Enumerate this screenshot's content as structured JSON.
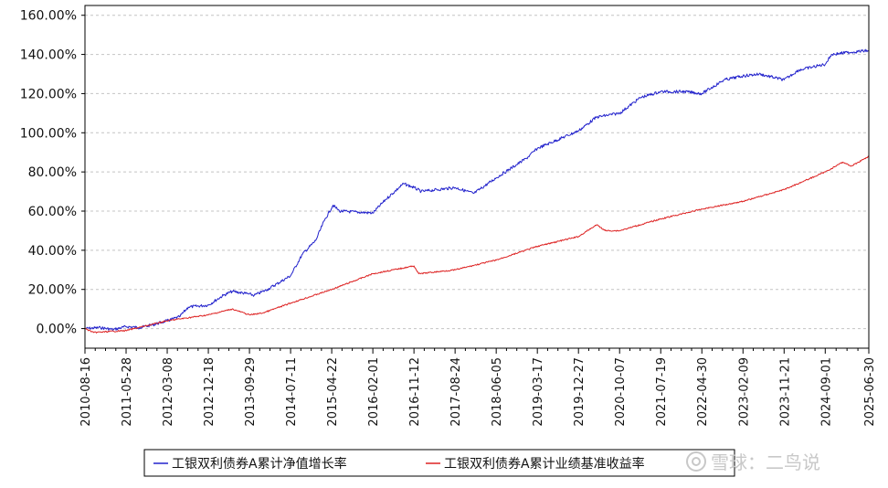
{
  "chart_data": {
    "type": "line",
    "title": "",
    "xlabel": "",
    "ylabel": "",
    "ylim": [
      -10,
      165
    ],
    "yticks": [
      0,
      20,
      40,
      60,
      80,
      100,
      120,
      140,
      160
    ],
    "ytick_labels": [
      "0.00%",
      "20.00%",
      "40.00%",
      "60.00%",
      "80.00%",
      "100.00%",
      "120.00%",
      "140.00%",
      "160.00%"
    ],
    "x_range": [
      "2010-08-16",
      "2025-06-30"
    ],
    "x_ticks": [
      "2010-08-16",
      "2011-05-28",
      "2012-03-08",
      "2012-12-18",
      "2013-09-29",
      "2014-07-11",
      "2015-04-22",
      "2016-02-01",
      "2016-11-12",
      "2017-08-24",
      "2018-06-05",
      "2019-03-17",
      "2019-12-27",
      "2020-10-07",
      "2021-07-19",
      "2022-04-30",
      "2023-02-09",
      "2023-11-21",
      "2024-09-01",
      "2025-06-30"
    ],
    "grid": "horizontal-dashed",
    "legend_position": "bottom",
    "series": [
      {
        "name": "工银双利债券A累计净值增长率",
        "color": "#2222cc",
        "points": [
          [
            "2010-08-16",
            0
          ],
          [
            "2010-12-01",
            0.5
          ],
          [
            "2011-03-01",
            -0.5
          ],
          [
            "2011-05-28",
            1
          ],
          [
            "2011-09-01",
            0.5
          ],
          [
            "2011-12-01",
            2
          ],
          [
            "2012-03-08",
            4
          ],
          [
            "2012-06-01",
            6
          ],
          [
            "2012-08-01",
            11
          ],
          [
            "2012-12-18",
            12
          ],
          [
            "2013-04-01",
            17
          ],
          [
            "2013-06-01",
            19
          ],
          [
            "2013-09-01",
            18
          ],
          [
            "2013-11-01",
            17
          ],
          [
            "2014-02-01",
            20
          ],
          [
            "2014-07-11",
            27
          ],
          [
            "2014-10-01",
            38
          ],
          [
            "2015-01-01",
            45
          ],
          [
            "2015-03-01",
            55
          ],
          [
            "2015-05-01",
            63
          ],
          [
            "2015-06-15",
            60
          ],
          [
            "2016-02-01",
            59
          ],
          [
            "2016-05-01",
            66
          ],
          [
            "2016-09-01",
            74
          ],
          [
            "2016-11-12",
            72
          ],
          [
            "2017-01-01",
            70
          ],
          [
            "2017-08-24",
            72
          ],
          [
            "2018-01-01",
            69
          ],
          [
            "2018-06-05",
            77
          ],
          [
            "2019-01-01",
            87
          ],
          [
            "2019-03-17",
            92
          ],
          [
            "2019-12-27",
            101
          ],
          [
            "2020-05-01",
            108
          ],
          [
            "2020-10-07",
            110
          ],
          [
            "2021-03-01",
            118
          ],
          [
            "2021-07-19",
            121
          ],
          [
            "2022-01-01",
            121
          ],
          [
            "2022-04-30",
            120
          ],
          [
            "2022-10-01",
            127
          ],
          [
            "2023-02-09",
            129
          ],
          [
            "2023-06-01",
            130
          ],
          [
            "2023-11-21",
            127
          ],
          [
            "2024-03-01",
            132
          ],
          [
            "2024-09-01",
            135
          ],
          [
            "2024-10-15",
            140
          ],
          [
            "2025-02-01",
            141
          ],
          [
            "2025-06-30",
            142
          ]
        ]
      },
      {
        "name": "工银双利债券A累计业绩基准收益率",
        "color": "#dd2222",
        "points": [
          [
            "2010-08-16",
            0
          ],
          [
            "2010-10-15",
            -2
          ],
          [
            "2011-05-28",
            -1
          ],
          [
            "2012-03-08",
            4
          ],
          [
            "2012-12-18",
            7
          ],
          [
            "2013-06-01",
            10
          ],
          [
            "2013-09-29",
            7
          ],
          [
            "2014-01-01",
            8
          ],
          [
            "2014-07-11",
            13
          ],
          [
            "2015-04-22",
            20
          ],
          [
            "2016-02-01",
            28
          ],
          [
            "2016-11-12",
            32
          ],
          [
            "2016-12-15",
            28
          ],
          [
            "2017-08-24",
            30
          ],
          [
            "2018-06-05",
            35
          ],
          [
            "2019-03-17",
            42
          ],
          [
            "2019-12-27",
            47
          ],
          [
            "2020-05-01",
            53
          ],
          [
            "2020-07-01",
            50
          ],
          [
            "2020-10-07",
            50
          ],
          [
            "2021-07-19",
            56
          ],
          [
            "2022-04-30",
            61
          ],
          [
            "2023-02-09",
            65
          ],
          [
            "2023-11-21",
            71
          ],
          [
            "2024-09-01",
            80
          ],
          [
            "2025-01-01",
            85
          ],
          [
            "2025-03-01",
            83
          ],
          [
            "2025-06-30",
            88
          ]
        ]
      }
    ]
  },
  "watermark": {
    "icon": "snowball-logo-icon",
    "text": "雪球：二鸟说"
  }
}
